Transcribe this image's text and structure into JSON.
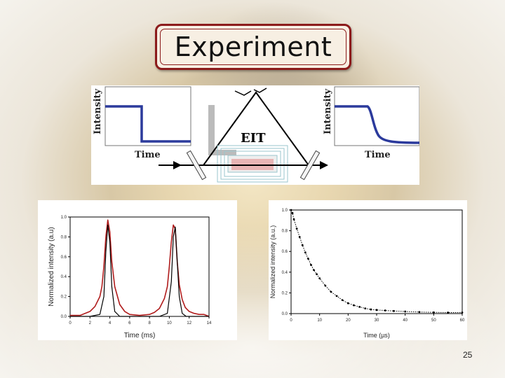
{
  "slide": {
    "title": "Experiment",
    "page_number": "25"
  },
  "diagram": {
    "left_inset": {
      "ylabel": "Intensity",
      "xlabel": "Time"
    },
    "right_inset": {
      "ylabel": "Intensity",
      "xlabel": "Time"
    },
    "center_label": "EIT",
    "colors": {
      "pulse": "#2b3a9c",
      "arrow": "#1a1a1a",
      "cell": "#e8b5b5"
    }
  },
  "chart_data": [
    {
      "type": "line",
      "xlabel": "Time (ms)",
      "ylabel": "Normalized intensity (a.u)",
      "xlim": [
        0,
        14
      ],
      "ylim": [
        0,
        1.0
      ],
      "xticks": [
        "0",
        "2",
        "4",
        "6",
        "8",
        "10",
        "12",
        "14"
      ],
      "yticks": [
        "0.0",
        "0.2",
        "0.4",
        "0.6",
        "0.8",
        "1.0"
      ],
      "series": [
        {
          "color": "#b01c1c",
          "x": [
            0,
            1,
            1.5,
            2,
            2.5,
            3,
            3.2,
            3.4,
            3.6,
            3.8,
            4.0,
            4.2,
            4.5,
            5,
            5.5,
            6,
            7,
            8,
            8.5,
            9,
            9.5,
            9.8,
            10,
            10.2,
            10.4,
            10.6,
            10.8,
            11,
            11.3,
            11.6,
            12,
            12.5,
            13,
            13.5,
            14
          ],
          "y": [
            0.01,
            0.01,
            0.03,
            0.05,
            0.1,
            0.2,
            0.3,
            0.5,
            0.8,
            0.97,
            0.85,
            0.55,
            0.3,
            0.12,
            0.05,
            0.02,
            0.01,
            0.02,
            0.04,
            0.08,
            0.18,
            0.3,
            0.5,
            0.75,
            0.92,
            0.88,
            0.55,
            0.32,
            0.17,
            0.09,
            0.05,
            0.03,
            0.02,
            0.02,
            0.0
          ]
        },
        {
          "color": "#000000",
          "x": [
            0,
            2,
            3,
            3.4,
            3.6,
            3.8,
            4.0,
            4.2,
            4.5,
            5,
            7,
            9,
            9.8,
            10.2,
            10.4,
            10.6,
            10.8,
            11.0,
            11.3,
            11.7,
            14
          ],
          "y": [
            0.0,
            0.0,
            0.02,
            0.2,
            0.65,
            0.92,
            0.75,
            0.3,
            0.05,
            0.0,
            0.0,
            0.0,
            0.03,
            0.35,
            0.8,
            0.9,
            0.55,
            0.2,
            0.03,
            0.0,
            0.0
          ]
        }
      ]
    },
    {
      "type": "scatter",
      "xlabel": "Time (µs)",
      "ylabel": "Normalized intensity (a.u.)",
      "xlim": [
        0,
        60
      ],
      "ylim": [
        0,
        1.0
      ],
      "xticks": [
        "0",
        "10",
        "20",
        "30",
        "40",
        "50",
        "60"
      ],
      "yticks": [
        "0.0",
        "0.2",
        "0.4",
        "0.6",
        "0.8",
        "1.0"
      ],
      "series": [
        {
          "color": "#000000",
          "x": [
            0,
            0.5,
            1,
            2,
            3,
            4,
            5,
            6,
            7,
            8,
            9,
            10,
            12,
            14,
            16,
            18,
            20,
            22,
            24,
            26,
            28,
            30,
            33,
            36,
            40,
            45,
            50,
            55,
            60
          ],
          "y": [
            1.0,
            0.97,
            0.91,
            0.82,
            0.74,
            0.66,
            0.59,
            0.53,
            0.47,
            0.42,
            0.38,
            0.34,
            0.27,
            0.21,
            0.17,
            0.13,
            0.1,
            0.08,
            0.065,
            0.05,
            0.04,
            0.035,
            0.03,
            0.025,
            0.02,
            0.015,
            0.012,
            0.01,
            0.01
          ]
        }
      ]
    }
  ]
}
